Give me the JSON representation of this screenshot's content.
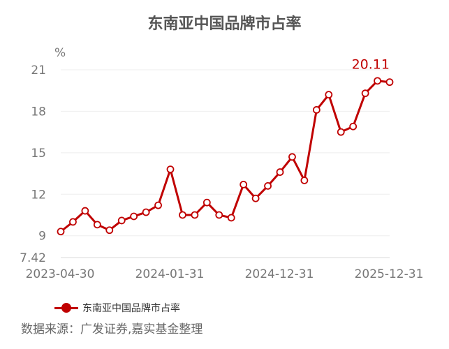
{
  "chart_data": {
    "type": "line",
    "title": "东南亚中国品牌市占率",
    "unit_label": "%",
    "x_tick_labels": [
      "2023-04-30",
      "2024-01-31",
      "2024-12-31",
      "2025-12-31"
    ],
    "y_tick_labels": [
      "7.42",
      "9",
      "12",
      "15",
      "18",
      "21"
    ],
    "ylim": [
      7.42,
      21
    ],
    "grid": true,
    "legend_position": "bottom-left",
    "last_value_label": "20.11",
    "series": [
      {
        "name": "东南亚中国品牌市占率",
        "color": "#c00000",
        "values": [
          9.3,
          10.0,
          10.8,
          9.8,
          9.4,
          10.1,
          10.4,
          10.7,
          11.2,
          13.8,
          10.5,
          10.5,
          11.4,
          10.5,
          10.3,
          12.7,
          11.7,
          12.6,
          13.6,
          14.7,
          13.0,
          18.1,
          19.2,
          16.5,
          16.9,
          19.3,
          20.2,
          20.11
        ]
      }
    ]
  },
  "legend": {
    "label": "东南亚中国品牌市占率"
  },
  "source": {
    "text": "数据来源：广发证券,嘉实基金整理"
  }
}
